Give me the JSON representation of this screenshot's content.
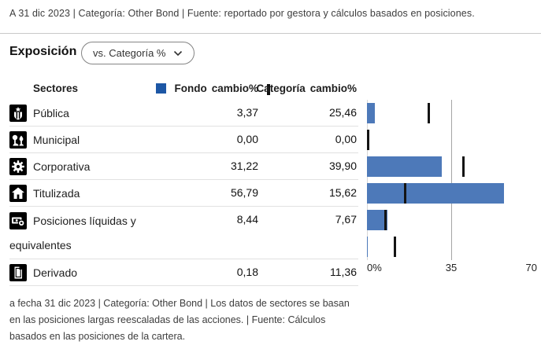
{
  "header_caption": "A 31 dic 2023 | Categoría: Other Bond | Fuente: reportado por gestora y cálculos basados en posiciones.",
  "section": {
    "title": "Exposición",
    "dropdown_value": "vs. Categoría %"
  },
  "table": {
    "col_sectors": "Sectores",
    "legend_fund_label": "Fondo",
    "legend_fund_change": "cambio%",
    "legend_category_label": "Categoría",
    "legend_category_change": "cambio%",
    "rows": [
      {
        "icon": "government-icon",
        "label": "Pública",
        "fund": "3,37",
        "category": "25,46"
      },
      {
        "icon": "municipal-icon",
        "label": "Municipal",
        "fund": "0,00",
        "category": "0,00"
      },
      {
        "icon": "corporate-icon",
        "label": "Corporativa",
        "fund": "31,22",
        "category": "39,90"
      },
      {
        "icon": "securitized-icon",
        "label": "Titulizada",
        "fund": "56,79",
        "category": "15,62"
      },
      {
        "icon": "cash-icon",
        "label": "Posiciones líquidas y equivalentes",
        "fund": "8,44",
        "category": "7,67",
        "tall": true
      },
      {
        "icon": "derivative-icon",
        "label": "Derivado",
        "fund": "0,18",
        "category": "11,36"
      }
    ]
  },
  "chart_data": {
    "type": "bar",
    "orientation": "horizontal",
    "title": "",
    "xlabel": "",
    "ylabel": "",
    "categories": [
      "Pública",
      "Municipal",
      "Corporativa",
      "Titulizada",
      "Posiciones líquidas y equivalentes",
      "Derivado"
    ],
    "series": [
      {
        "name": "Fondo cambio%",
        "style": "bar",
        "values": [
          3.37,
          0.0,
          31.22,
          56.79,
          8.44,
          0.18
        ]
      },
      {
        "name": "Categoría cambio%",
        "style": "tick",
        "values": [
          25.46,
          0.0,
          39.9,
          15.62,
          7.67,
          11.36
        ]
      }
    ],
    "xlim": [
      0,
      70
    ],
    "tick_labels": [
      "0%",
      "35",
      "70"
    ],
    "grid": "vertical-at-0-and-35",
    "legend_position": "top",
    "colors": {
      "fund_bar": "#4d79b9",
      "legend_square": "#1d57a5",
      "category_tick": "#141414"
    }
  },
  "footer_caption_lines": [
    "a fecha 31 dic 2023 | Categoría: Other Bond | Los datos de sectores se basan",
    "en las posiciones largas reescaladas de las acciones. | Fuente: Cálculos",
    "basados en las posiciones de la cartera."
  ]
}
